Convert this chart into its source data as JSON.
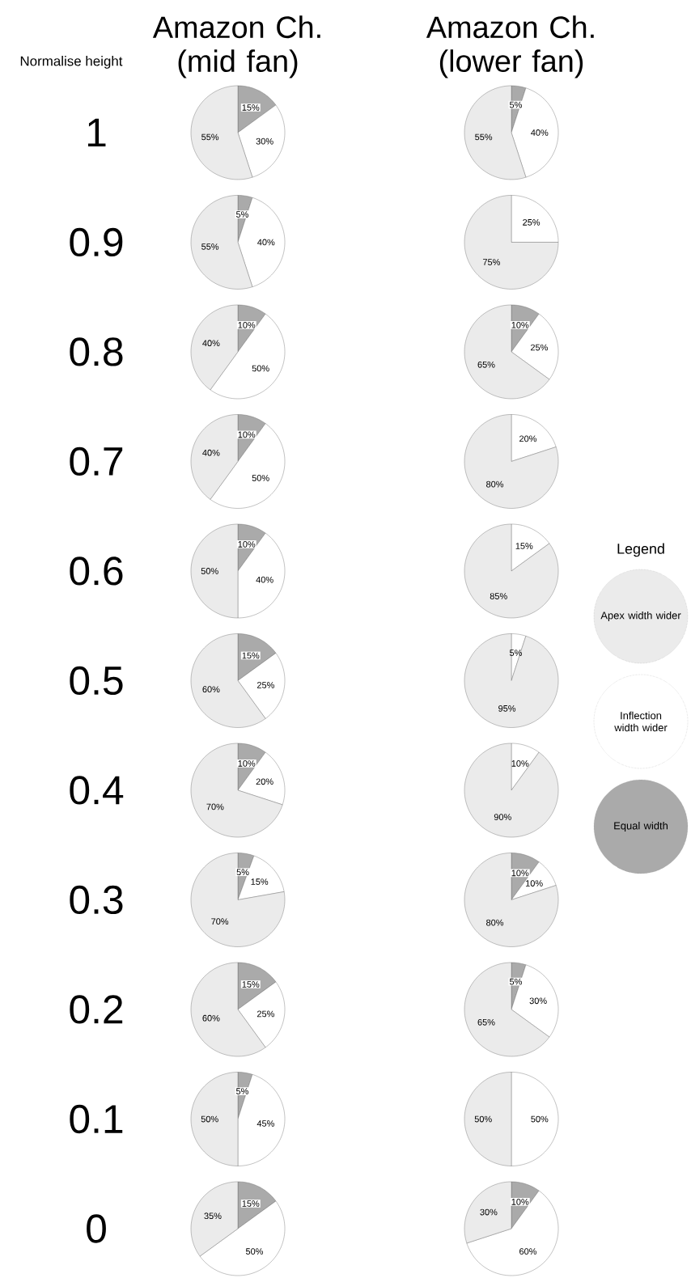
{
  "chart_data": [
    {
      "type": "pie",
      "title": "Amazon Ch. (mid fan)",
      "annotations": [
        "Normalise height"
      ],
      "ylabel": "1",
      "categories": [
        null,
        null,
        null
      ],
      "colors": [
        "#aaaaaa",
        "#ffffff",
        "#ebebeb"
      ],
      "values": [
        15,
        30,
        55
      ],
      "value_labels": [
        "15%",
        "30%",
        "55%"
      ]
    },
    {
      "type": "pie",
      "title": "Amazon Ch. (lower fan)",
      "categories": [
        null,
        null,
        null
      ],
      "colors": [
        "#aaaaaa",
        "#ffffff",
        "#ebebeb"
      ],
      "values": [
        5,
        40,
        55
      ],
      "value_labels": [
        "5%",
        "40%",
        "55%"
      ]
    },
    {
      "type": "pie",
      "ylabel": "0.9",
      "categories": [
        null,
        null,
        null
      ],
      "colors": [
        "#aaaaaa",
        "#ffffff",
        "#ebebeb"
      ],
      "values": [
        5,
        40,
        55
      ],
      "value_labels": [
        "5%",
        "40%",
        "55%"
      ]
    },
    {
      "type": "pie",
      "categories": [
        null,
        null,
        null
      ],
      "colors": [
        "#aaaaaa",
        "#ffffff",
        "#ebebeb"
      ],
      "values": [
        0,
        25,
        75
      ],
      "value_labels": [
        null,
        "25%",
        "75%"
      ]
    },
    {
      "type": "pie",
      "ylabel": "0.8",
      "categories": [
        null,
        null,
        null
      ],
      "colors": [
        "#aaaaaa",
        "#ffffff",
        "#ebebeb"
      ],
      "values": [
        10,
        50,
        40
      ],
      "value_labels": [
        "10%",
        "50%",
        "40%"
      ]
    },
    {
      "type": "pie",
      "categories": [
        null,
        null,
        null
      ],
      "colors": [
        "#aaaaaa",
        "#ffffff",
        "#ebebeb"
      ],
      "values": [
        10,
        25,
        65
      ],
      "value_labels": [
        "10%",
        "25%",
        "65%"
      ]
    },
    {
      "type": "pie",
      "ylabel": "0.7",
      "categories": [
        null,
        null,
        null
      ],
      "colors": [
        "#aaaaaa",
        "#ffffff",
        "#ebebeb"
      ],
      "values": [
        10,
        50,
        40
      ],
      "value_labels": [
        "10%",
        "50%",
        "40%"
      ]
    },
    {
      "type": "pie",
      "categories": [
        null,
        null,
        null
      ],
      "colors": [
        "#aaaaaa",
        "#ffffff",
        "#ebebeb"
      ],
      "values": [
        0,
        20,
        80
      ],
      "value_labels": [
        null,
        "20%",
        "80%"
      ]
    },
    {
      "type": "pie",
      "ylabel": "0.6",
      "categories": [
        null,
        null,
        null
      ],
      "colors": [
        "#aaaaaa",
        "#ffffff",
        "#ebebeb"
      ],
      "values": [
        10,
        40,
        50
      ],
      "value_labels": [
        "10%",
        "40%",
        "50%"
      ]
    },
    {
      "type": "pie",
      "categories": [
        null,
        null,
        null
      ],
      "colors": [
        "#aaaaaa",
        "#ffffff",
        "#ebebeb"
      ],
      "values": [
        0,
        15,
        85
      ],
      "value_labels": [
        null,
        "15%",
        "85%"
      ]
    },
    {
      "type": "pie",
      "ylabel": "0.5",
      "categories": [
        null,
        null,
        null
      ],
      "colors": [
        "#aaaaaa",
        "#ffffff",
        "#ebebeb"
      ],
      "values": [
        15,
        25,
        60
      ],
      "value_labels": [
        "15%",
        "25%",
        "60%"
      ]
    },
    {
      "type": "pie",
      "categories": [
        null,
        null,
        null
      ],
      "colors": [
        "#aaaaaa",
        "#ffffff",
        "#ebebeb"
      ],
      "values": [
        0,
        5,
        95
      ],
      "value_labels": [
        null,
        "5%",
        "95%"
      ]
    },
    {
      "type": "pie",
      "ylabel": "0.4",
      "categories": [
        null,
        null,
        null
      ],
      "colors": [
        "#aaaaaa",
        "#ffffff",
        "#ebebeb"
      ],
      "values": [
        10,
        20,
        70
      ],
      "value_labels": [
        "10%",
        "20%",
        "70%"
      ]
    },
    {
      "type": "pie",
      "categories": [
        null,
        null,
        null
      ],
      "colors": [
        "#aaaaaa",
        "#ffffff",
        "#ebebeb"
      ],
      "values": [
        0,
        10,
        90
      ],
      "value_labels": [
        null,
        "10%",
        "90%"
      ]
    },
    {
      "type": "pie",
      "ylabel": "0.3",
      "categories": [
        null,
        null,
        null
      ],
      "colors": [
        "#aaaaaa",
        "#ffffff",
        "#ebebeb"
      ],
      "values": [
        5,
        15,
        70
      ],
      "value_labels": [
        "5%",
        "15%",
        "70%"
      ]
    },
    {
      "type": "pie",
      "categories": [
        null,
        null,
        null
      ],
      "colors": [
        "#aaaaaa",
        "#ffffff",
        "#ebebeb"
      ],
      "values": [
        10,
        10,
        80
      ],
      "value_labels": [
        "10%",
        "10%",
        "80%"
      ]
    },
    {
      "type": "pie",
      "ylabel": "0.2",
      "categories": [
        null,
        null,
        null
      ],
      "colors": [
        "#aaaaaa",
        "#ffffff",
        "#ebebeb"
      ],
      "values": [
        15,
        25,
        60
      ],
      "value_labels": [
        "15%",
        "25%",
        "60%"
      ]
    },
    {
      "type": "pie",
      "categories": [
        null,
        null,
        null
      ],
      "colors": [
        "#aaaaaa",
        "#ffffff",
        "#ebebeb"
      ],
      "values": [
        5,
        30,
        65
      ],
      "value_labels": [
        "5%",
        "30%",
        "65%"
      ]
    },
    {
      "type": "pie",
      "ylabel": "0.1",
      "categories": [
        null,
        null,
        null
      ],
      "colors": [
        "#aaaaaa",
        "#ffffff",
        "#ebebeb"
      ],
      "values": [
        5,
        45,
        50
      ],
      "value_labels": [
        "5%",
        "45%",
        "50%"
      ]
    },
    {
      "type": "pie",
      "categories": [
        null,
        null,
        null
      ],
      "colors": [
        "#aaaaaa",
        "#ffffff",
        "#ebebeb"
      ],
      "values": [
        0,
        50,
        50
      ],
      "value_labels": [
        null,
        "50%",
        "50%"
      ]
    },
    {
      "type": "pie",
      "ylabel": "0",
      "categories": [
        null,
        null,
        null
      ],
      "colors": [
        "#aaaaaa",
        "#ffffff",
        "#ebebeb"
      ],
      "values": [
        15,
        50,
        35
      ],
      "value_labels": [
        "15%",
        "50%",
        "35%"
      ]
    },
    {
      "type": "pie",
      "categories": [
        null,
        null,
        null
      ],
      "colors": [
        "#aaaaaa",
        "#ffffff",
        "#ebebeb"
      ],
      "values": [
        10,
        60,
        30
      ],
      "value_labels": [
        "10%",
        "60%",
        "30%"
      ]
    },
    {
      "type": "other",
      "legend_title": "Legend",
      "categories": [
        "Apex width wider",
        "Inflection width wider",
        "Equal width"
      ],
      "colors": [
        "#ebebeb",
        "#ffffff",
        "#aaaaaa"
      ]
    }
  ]
}
